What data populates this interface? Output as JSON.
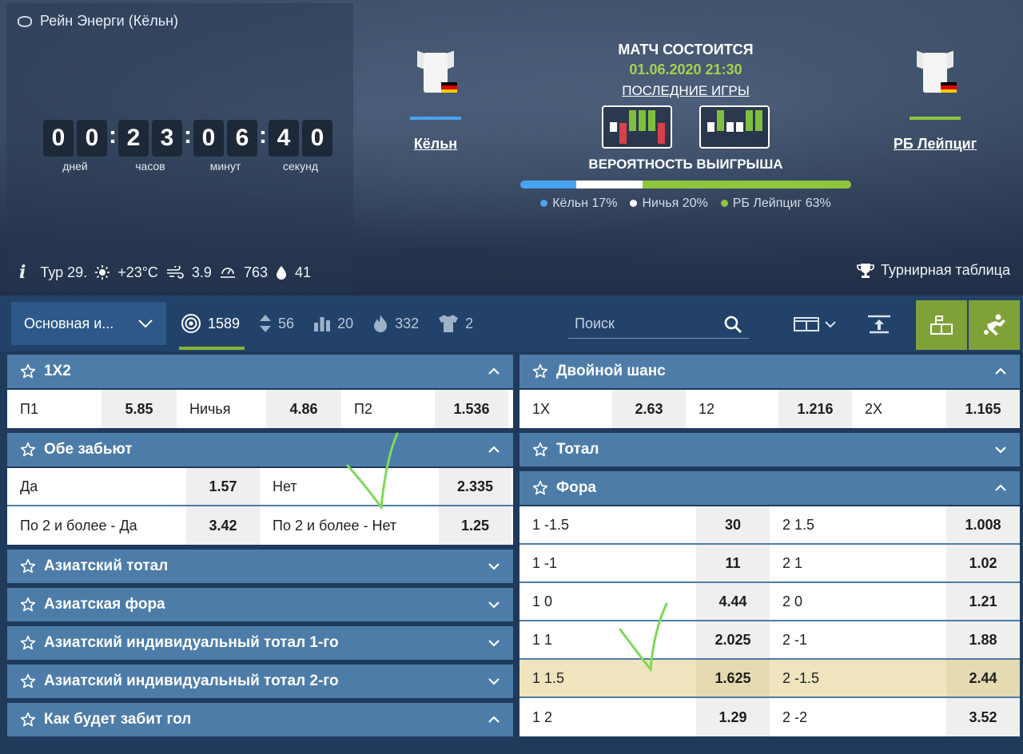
{
  "header": {
    "stadium": "Рейн Энерги (Кёльн)",
    "countdown": [
      {
        "digits": [
          "0",
          "0"
        ],
        "label": "дней"
      },
      {
        "digits": [
          "2",
          "3"
        ],
        "label": "часов"
      },
      {
        "digits": [
          "0",
          "6"
        ],
        "label": "минут"
      },
      {
        "digits": [
          "4",
          "0"
        ],
        "label": "секунд"
      }
    ],
    "info": {
      "round": "Тур 29.",
      "temp": "+23°C",
      "wind": "3.9",
      "pressure": "763",
      "humidity": "41"
    },
    "tournament_table": "Турнирная таблица",
    "match_when": "МАТЧ СОСТОИТСЯ",
    "match_date": "01.06.2020 21:30",
    "last_games": "ПОСЛЕДНИЕ ИГРЫ",
    "win_probability_title": "ВЕРОЯТНОСТЬ ВЫИГРЫША",
    "team1": {
      "name": "Кёльн",
      "line_color": "#4aa3f0"
    },
    "team2": {
      "name": "РБ Лейпциг",
      "line_color": "#8ec63f"
    },
    "probability": {
      "team1": {
        "label": "Кёльн 17%",
        "value": 17,
        "color": "#4aa3f0"
      },
      "draw": {
        "label": "Ничья 20%",
        "value": 20,
        "color": "#ffffff"
      },
      "team2": {
        "label": "РБ Лейпциг 63%",
        "value": 63,
        "color": "#8ec63f"
      }
    },
    "form_team1": [
      {
        "result": "d",
        "level": 0.25
      },
      {
        "result": "l",
        "level": 0.55
      },
      {
        "result": "w",
        "level": 0.55
      },
      {
        "result": "w",
        "level": 0.55
      },
      {
        "result": "w",
        "level": 0.55
      },
      {
        "result": "l",
        "level": 0.55
      }
    ],
    "form_team2": [
      {
        "result": "d",
        "level": 0.25
      },
      {
        "result": "w",
        "level": 0.55
      },
      {
        "result": "d",
        "level": 0.25
      },
      {
        "result": "d",
        "level": 0.25
      },
      {
        "result": "w",
        "level": 0.55
      },
      {
        "result": "w",
        "level": 0.55
      }
    ],
    "form_colors": {
      "w": "#7fbf3f",
      "l": "#d8404a",
      "d": "#ffffff"
    }
  },
  "toolbar": {
    "market_select": "Основная и...",
    "stats": [
      {
        "icon": "target-icon",
        "value": "1589",
        "active": true
      },
      {
        "icon": "sort-icon",
        "value": "56",
        "active": false
      },
      {
        "icon": "stats-bars-icon",
        "value": "20",
        "active": false
      },
      {
        "icon": "fire-icon",
        "value": "332",
        "active": false
      },
      {
        "icon": "shirt-icon",
        "value": "2",
        "active": false
      }
    ],
    "search_placeholder": "Поиск"
  },
  "markets_left": [
    {
      "title": "1X2",
      "expanded": true,
      "rows": [
        [
          {
            "name": "П1",
            "odd": "5.85"
          },
          {
            "name": "Ничья",
            "odd": "4.86"
          },
          {
            "name": "П2",
            "odd": "1.536"
          }
        ]
      ]
    },
    {
      "title": "Обе забьют",
      "expanded": true,
      "rows": [
        [
          {
            "name": "Да",
            "odd": "1.57"
          },
          {
            "name": "Нет",
            "odd": "2.335"
          }
        ],
        [
          {
            "name": "По 2 и более - Да",
            "odd": "3.42"
          },
          {
            "name": "По 2 и более - Нет",
            "odd": "1.25"
          }
        ]
      ]
    },
    {
      "title": "Азиатский тотал",
      "expanded": false,
      "rows": []
    },
    {
      "title": "Азиатская фора",
      "expanded": false,
      "rows": []
    },
    {
      "title": "Азиатский индивидуальный тотал 1-го",
      "expanded": false,
      "rows": []
    },
    {
      "title": "Азиатский индивидуальный тотал 2-го",
      "expanded": false,
      "rows": []
    },
    {
      "title": "Как будет забит гол",
      "expanded": true,
      "rows": []
    }
  ],
  "markets_right": [
    {
      "title": "Двойной шанс",
      "expanded": true,
      "rows": [
        [
          {
            "name": "1X",
            "odd": "2.63"
          },
          {
            "name": "12",
            "odd": "1.216"
          },
          {
            "name": "2X",
            "odd": "1.165"
          }
        ]
      ]
    },
    {
      "title": "Тотал",
      "expanded": false,
      "rows": []
    },
    {
      "title": "Фора",
      "expanded": true,
      "rows": [
        [
          {
            "name": "1 -1.5",
            "odd": "30"
          },
          {
            "name": "2 1.5",
            "odd": "1.008"
          }
        ],
        [
          {
            "name": "1 -1",
            "odd": "11"
          },
          {
            "name": "2 1",
            "odd": "1.02"
          }
        ],
        [
          {
            "name": "1 0",
            "odd": "4.44"
          },
          {
            "name": "2 0",
            "odd": "1.21"
          }
        ],
        [
          {
            "name": "1 1",
            "odd": "2.025"
          },
          {
            "name": "2 -1",
            "odd": "1.88"
          }
        ],
        [
          {
            "name": "1 1.5",
            "odd": "1.625"
          },
          {
            "name": "2 -1.5",
            "odd": "2.44"
          }
        ],
        [
          {
            "name": "1 2",
            "odd": "1.29"
          },
          {
            "name": "2 -2",
            "odd": "3.52"
          }
        ]
      ],
      "highlight_row": 4
    }
  ]
}
